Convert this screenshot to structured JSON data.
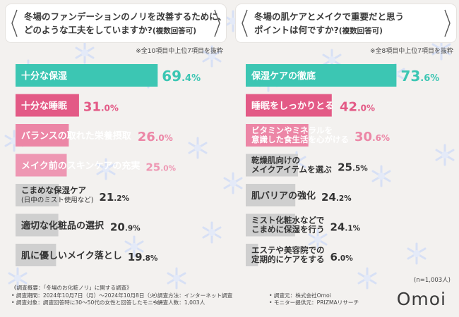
{
  "chart_data": [
    {
      "type": "bar",
      "title": "冬場のファンデーションのノリを改善するために、どのような工夫をしていますか?",
      "title_line1": "冬場のファンデーションのノリを改善するために、",
      "title_line2": "どのような工夫をしていますか?",
      "title_suffix": "(複数回答可)",
      "note": "※全10項目中上位7項目を抜粋",
      "unit": "%",
      "xlim": [
        0,
        100
      ],
      "categories": [
        [
          "十分な保湿"
        ],
        [
          "十分な睡眠"
        ],
        [
          "バランスの取れた栄養摂取"
        ],
        [
          "メイク前のスキンケアの充実"
        ],
        [
          "こまめな保湿ケア",
          "(日中のミスト使用など)"
        ],
        [
          "適切な化粧品の選択"
        ],
        [
          "肌に優しいメイク落とし"
        ]
      ],
      "values": [
        69.4,
        31.0,
        26.0,
        25.0,
        21.2,
        20.9,
        19.8
      ],
      "value_labels": [
        [
          "69",
          ".4%"
        ],
        [
          "31",
          ".0%"
        ],
        [
          "26",
          ".0%"
        ],
        [
          "25",
          ".0%"
        ],
        [
          "21",
          ".2%"
        ],
        [
          "20",
          ".9%"
        ],
        [
          "19",
          ".8%"
        ]
      ],
      "colors": [
        "#3cc6b3",
        "#e35a86",
        "#ec86a6",
        "#ee97b3",
        "#cfcfcf",
        "#cfcfcf",
        "#cfcfcf"
      ],
      "label_colors": [
        "#ffffff",
        "#ffffff",
        "#ffffff",
        "#ffffff",
        "#333333",
        "#333333",
        "#333333"
      ],
      "value_colors": [
        "#3cc6b3",
        "#e35a86",
        "#ec86a6",
        "#ee97b3",
        "#333333",
        "#333333",
        "#333333"
      ]
    },
    {
      "type": "bar",
      "title": "冬場の肌ケアとメイクで重要だと思うポイントは何ですか?",
      "title_line1": "冬場の肌ケアとメイクで重要だと思う",
      "title_line2": "ポイントは何ですか?",
      "title_suffix": "(複数回答可)",
      "note": "※全8項目中上位7項目を抜粋",
      "unit": "%",
      "xlim": [
        0,
        100
      ],
      "categories": [
        [
          "保湿ケアの徹底"
        ],
        [
          "睡眠をしっかりとる"
        ],
        [
          "ビタミンやミネラルを",
          "意識した食生活を心がける"
        ],
        [
          "乾燥肌向けの",
          "メイクアイテムを選ぶ"
        ],
        [
          "肌バリアの強化"
        ],
        [
          "ミスト化粧水などで",
          "こまめに保湿を行う"
        ],
        [
          "エステや美容院での",
          "定期的にケアをする"
        ]
      ],
      "values": [
        73.6,
        42.0,
        30.6,
        25.5,
        24.2,
        24.1,
        6.0
      ],
      "value_labels": [
        [
          "73",
          ".6%"
        ],
        [
          "42",
          ".0%"
        ],
        [
          "30",
          ".6%"
        ],
        [
          "25",
          ".5%"
        ],
        [
          "24",
          ".2%"
        ],
        [
          "24",
          ".1%"
        ],
        [
          "6",
          ".0%"
        ]
      ],
      "colors": [
        "#3cc6b3",
        "#e35a86",
        "#ec86a6",
        "#cfcfcf",
        "#cfcfcf",
        "#cfcfcf",
        "#cfcfcf"
      ],
      "label_colors": [
        "#ffffff",
        "#ffffff",
        "#ffffff",
        "#333333",
        "#333333",
        "#333333",
        "#333333"
      ],
      "value_colors": [
        "#3cc6b3",
        "#e35a86",
        "#ec86a6",
        "#333333",
        "#333333",
        "#333333",
        "#333333"
      ],
      "n_note": "(n=1,003人)"
    }
  ],
  "footer": {
    "rows": [
      [
        "《調査概要：「冬場のお化粧ノリ」に関する調査》",
        "",
        ""
      ],
      [
        "• 調査期間：2024年10月7日（月）～2024年10月8日（火）",
        "• 調査方法：インターネット調査",
        "• 調査元：株式会社Omoi"
      ],
      [
        "• 調査対象：調査回答時に30〜50代の女性と回答したモニター",
        "• 調査人数：1,003人",
        "• モニター提供元：PRIZMAリサーチ"
      ]
    ]
  },
  "logo": "Omoi"
}
